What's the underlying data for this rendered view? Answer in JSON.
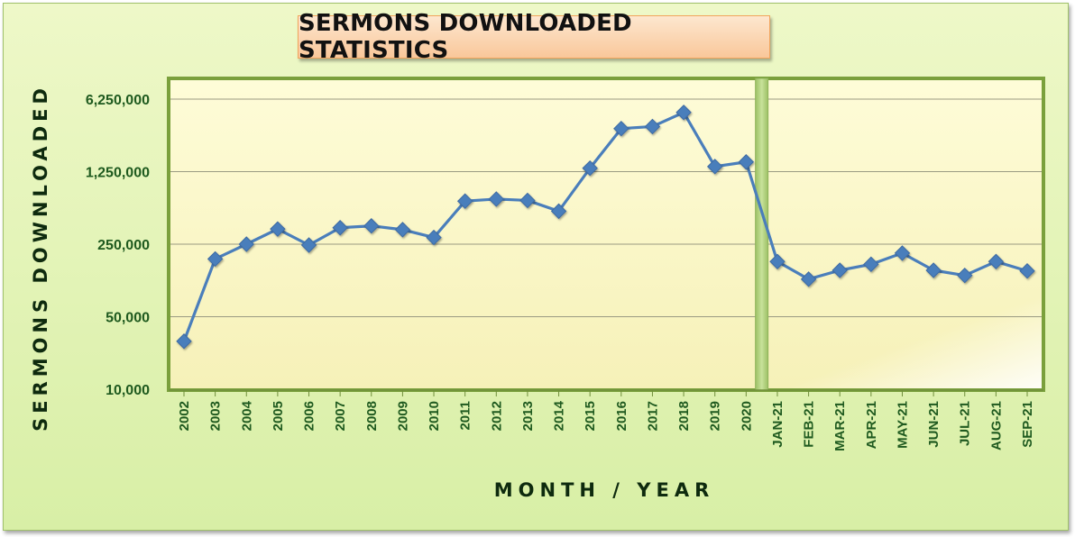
{
  "chart_data": {
    "type": "line",
    "title": "SERMONS DOWNLOADED STATISTICS",
    "xlabel": "MONTH / YEAR",
    "ylabel": "SERMONS DOWNLOADED",
    "yscale": "log",
    "ylim": [
      10000,
      6250000
    ],
    "yticks": [
      10000,
      50000,
      250000,
      1250000,
      6250000
    ],
    "ytick_labels": [
      "10,000",
      "50,000",
      "250,000",
      "1,250,000",
      "6,250,000"
    ],
    "grid": true,
    "legend": "none",
    "categories": [
      "2002",
      "2003",
      "2004",
      "2005",
      "2006",
      "2007",
      "2008",
      "2009",
      "2010",
      "2011",
      "2012",
      "2013",
      "2014",
      "2015",
      "2016",
      "2017",
      "2018",
      "2019",
      "2020",
      "JAN-21",
      "FEB-21",
      "MAR-21",
      "APR-21",
      "MAY-21",
      "JUN-21",
      "JUL-21",
      "AUG-21",
      "SEP-21"
    ],
    "series": [
      {
        "values": [
          29000,
          180000,
          250000,
          350000,
          245000,
          360000,
          375000,
          345000,
          290000,
          650000,
          680000,
          660000,
          520000,
          1350000,
          3250000,
          3400000,
          4650000,
          1400000,
          1550000,
          170000,
          115000,
          140000,
          160000,
          205000,
          140000,
          125000,
          170000,
          138000
        ],
        "color": "#4a7ebb"
      }
    ],
    "separator_after": "2020"
  },
  "colors": {
    "background": "#e3f3b6",
    "plot_background": "#fdfbd0",
    "plot_border": "#7aa03c",
    "line": "#4a7ebb",
    "tick_text": "#1f5a1f",
    "title_box": "#f9c79a"
  }
}
